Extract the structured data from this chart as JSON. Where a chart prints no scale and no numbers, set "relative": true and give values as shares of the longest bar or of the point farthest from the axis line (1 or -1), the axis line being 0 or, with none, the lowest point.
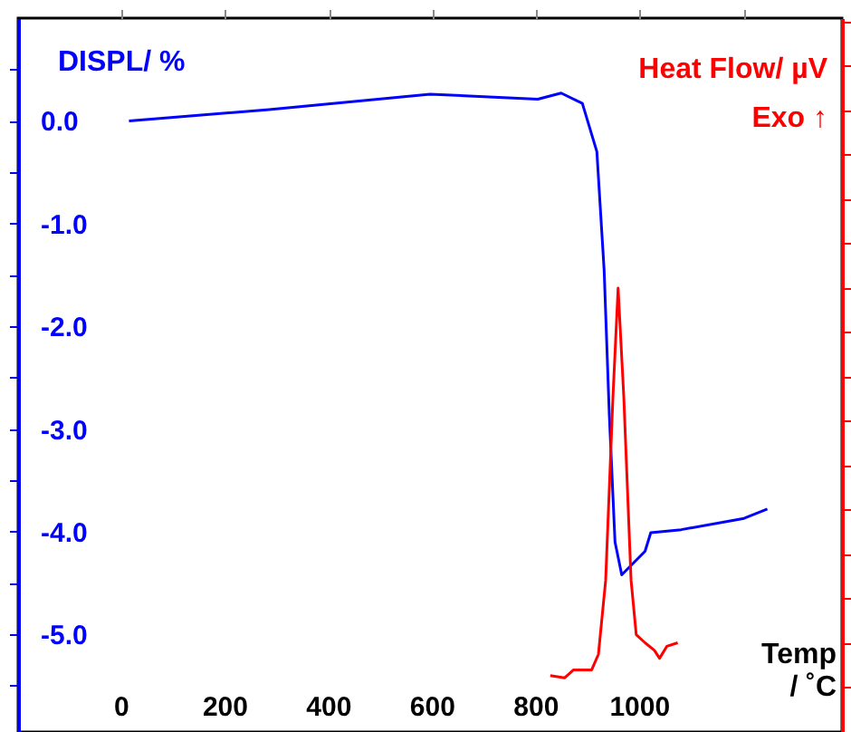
{
  "chart_data": [
    {
      "type": "line",
      "xlabel": "Temp\n/ ˚C",
      "ylabel": "DISPL/ %",
      "xlim": [
        -200,
        1390
      ],
      "ylim": [
        -5.95,
        1.0
      ],
      "xticks": [
        0,
        200,
        400,
        600,
        800,
        1000,
        {
          "value": 1200,
          "label": null
        }
      ],
      "yticks": [
        {
          "value": 0.5,
          "label": null
        },
        {
          "value": 0,
          "label": "0.0"
        },
        {
          "value": -0.5,
          "label": null
        },
        {
          "value": -1,
          "label": "-1.0"
        },
        {
          "value": -1.5,
          "label": null
        },
        {
          "value": -2,
          "label": "-2.0"
        },
        {
          "value": -2.5,
          "label": null
        },
        {
          "value": -3,
          "label": "-3.0"
        },
        {
          "value": -3.5,
          "label": null
        },
        {
          "value": -4,
          "label": "-4.0"
        },
        {
          "value": -4.5,
          "label": null
        },
        {
          "value": -5,
          "label": "-5.0"
        },
        {
          "value": -5.5,
          "label": null
        }
      ],
      "grid": false,
      "line_style": "solid",
      "series": [
        {
          "color": "#0000ff",
          "x": [
            14,
            284,
            595,
            803,
            848,
            889,
            917,
            931,
            941,
            952,
            965,
            1010,
            1021,
            1080,
            1201,
            1246
          ],
          "values": [
            0.0,
            0.11,
            0.26,
            0.21,
            0.27,
            0.17,
            -0.3,
            -1.45,
            -2.86,
            -4.1,
            -4.42,
            -4.19,
            -4.01,
            -3.98,
            -3.87,
            -3.78
          ]
        }
      ]
    },
    {
      "type": "line",
      "y2label": "Heat Flow/ µV",
      "annotations": [
        "Exo ↑"
      ],
      "relative": true,
      "xlim": [
        -200,
        1390
      ],
      "grid": false,
      "line_style": "solid",
      "series": [
        {
          "color": "#ff0000",
          "axis": "y2",
          "x": [
            827,
            855,
            872,
            907,
            920,
            934,
            948,
            958,
            969,
            983,
            993,
            1010,
            1028,
            1038,
            1052,
            1073
          ],
          "values": [
            0.127,
            0.122,
            0.14,
            0.14,
            0.175,
            0.342,
            0.754,
            1.0,
            0.754,
            0.342,
            0.219,
            0.201,
            0.184,
            0.166,
            0.193,
            0.201
          ]
        }
      ]
    }
  ]
}
